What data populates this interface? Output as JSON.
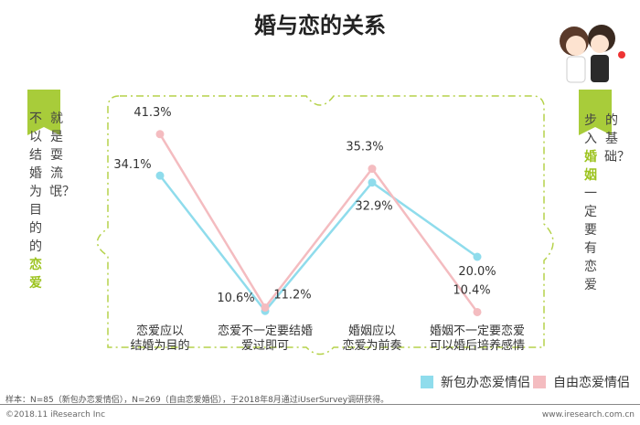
{
  "title": "婚与恋的关系",
  "left_banner": {
    "col1": "不以结婚为目的的",
    "col1_highlight": "恋爱",
    "col2": "就是耍流氓？"
  },
  "right_banner": {
    "col1_prefix": "步入",
    "col1_highlight": "婚姻",
    "col1_suffix": "一定要有恋爱",
    "col2": "的基础？"
  },
  "colors": {
    "series_blue": "#8fdcec",
    "series_pink": "#f4bcc0",
    "accent": "#9cc31e"
  },
  "chart_data": {
    "type": "line",
    "categories": [
      "恋爱应以\n结婚为目的",
      "恋爱不一定要结婚\n爱过即可",
      "婚姻应以\n恋爱为前奏",
      "婚姻不一定要恋爱\n可以婚后培养感情"
    ],
    "category_lines": [
      [
        "恋爱应以",
        "结婚为目的"
      ],
      [
        "恋爱不一定要结婚",
        "爱过即可"
      ],
      [
        "婚姻应以",
        "恋爱为前奏"
      ],
      [
        "婚姻不一定要恋爱",
        "可以婚后培养感情"
      ]
    ],
    "series": [
      {
        "name": "新包办恋爱情侣",
        "values": [
          34.1,
          10.6,
          32.9,
          20.0
        ],
        "labels": [
          "34.1%",
          "10.6%",
          "32.9%",
          "20.0%"
        ],
        "color": "#8fdcec"
      },
      {
        "name": "自由恋爱情侣",
        "values": [
          41.3,
          11.2,
          35.3,
          10.4
        ],
        "labels": [
          "41.3%",
          "11.2%",
          "35.3%",
          "10.4%"
        ],
        "color": "#f4bcc0"
      }
    ],
    "unit": "%",
    "legend": "bottom-right"
  },
  "note": "样本：N=85（新包办恋爱情侣），N=269（自由恋爱婚侣），于2018年8月通过iUserSurvey调研获得。",
  "footer": {
    "left": "©2018.11 iResearch Inc",
    "right": "www.iresearch.com.cn"
  }
}
